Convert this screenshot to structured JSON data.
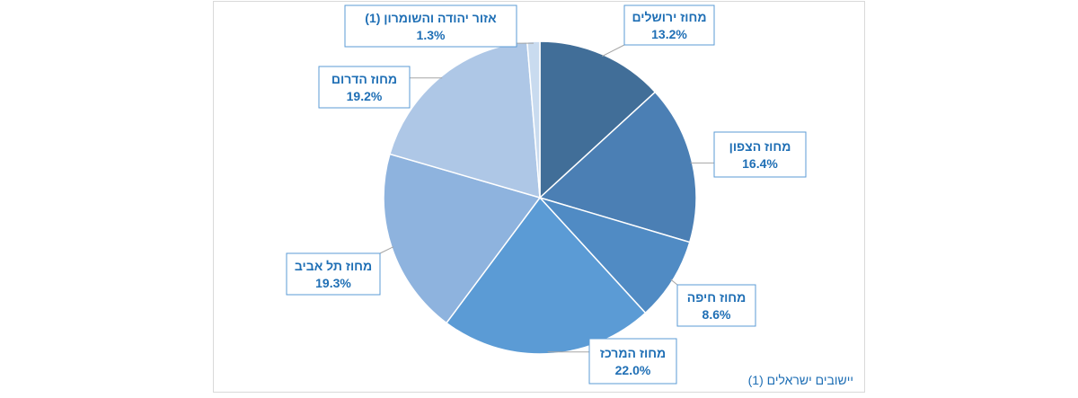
{
  "chart_data": {
    "type": "pie",
    "slices": [
      {
        "label": "מחוז ירושלים",
        "value": 13.2,
        "display": "13.2%",
        "color": "#416e98"
      },
      {
        "label": "מחוז הצפון",
        "value": 16.4,
        "display": "16.4%",
        "color": "#4b7fb4"
      },
      {
        "label": "מחוז חיפה",
        "value": 8.6,
        "display": "8.6%",
        "color": "#508bc4"
      },
      {
        "label": "מחוז המרכז",
        "value": 22.0,
        "display": "22.0%",
        "color": "#5b9bd5"
      },
      {
        "label": "מחוז תל אביב",
        "value": 19.3,
        "display": "19.3%",
        "color": "#8eb3de"
      },
      {
        "label": "מחוז הדרום",
        "value": 19.2,
        "display": "19.2%",
        "color": "#aec7e6"
      },
      {
        "label": "אזור יהודה והשומרון (1)",
        "value": 1.3,
        "display": "1.3%",
        "color": "#c9dbef"
      }
    ],
    "footnote": "(1) יישובים ישראלים",
    "legend": "none",
    "colors": {
      "label_text": "#1f6fb5",
      "label_border": "#5b9bd5",
      "leader": "#a5a5a5"
    }
  }
}
